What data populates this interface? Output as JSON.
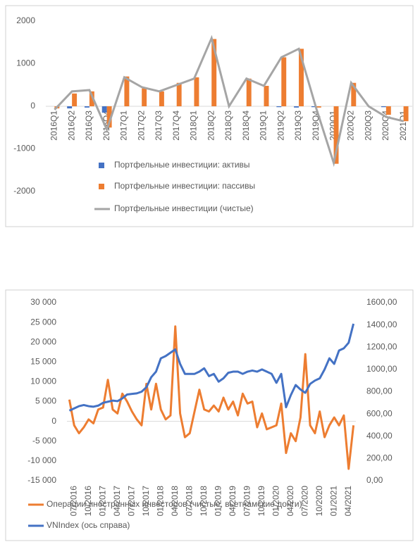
{
  "chart_data": [
    {
      "type": "bar",
      "categories": [
        "2016Q1",
        "2016Q2",
        "2016Q3",
        "2016Q4",
        "2017Q1",
        "2017Q2",
        "2017Q3",
        "2017Q4",
        "2018Q1",
        "2018Q2",
        "2018Q3",
        "2018Q4",
        "2019Q1",
        "2019Q2",
        "2019Q3",
        "2019Q4",
        "2020Q1",
        "2020Q2",
        "2020Q3",
        "2020Q4",
        "2021Q1"
      ],
      "series": [
        {
          "name": "Портфельные инвестиции: активы",
          "color": "#4472c4",
          "values": [
            0,
            -50,
            -30,
            -150,
            0,
            0,
            0,
            0,
            0,
            0,
            0,
            0,
            0,
            -20,
            -30,
            -20,
            0,
            0,
            0,
            -20,
            0
          ]
        },
        {
          "name": "Портфельные инвестиции: пассивы",
          "color": "#ed7d31",
          "values": [
            -50,
            300,
            350,
            -500,
            700,
            420,
            350,
            550,
            680,
            1580,
            0,
            650,
            480,
            1150,
            1350,
            -30,
            -1350,
            550,
            0,
            -200,
            -350
          ]
        },
        {
          "name": "Портфельные инвестиции (чистые)",
          "color": "#a5a5a5",
          "type": "line",
          "values": [
            -80,
            350,
            380,
            -550,
            680,
            450,
            350,
            500,
            650,
            1600,
            0,
            650,
            480,
            1150,
            1350,
            -50,
            -1330,
            550,
            0,
            -250,
            -350
          ]
        }
      ],
      "ylim": [
        -2000,
        2000
      ],
      "yticks": [
        -2000,
        -1000,
        0,
        1000,
        2000
      ]
    },
    {
      "type": "line",
      "categories": [
        null,
        "07/2016",
        null,
        null,
        "10/2016",
        null,
        null,
        "01/2017",
        null,
        null,
        "04/2017",
        null,
        null,
        "07/2017",
        null,
        null,
        "10/2017",
        null,
        null,
        "01/2018",
        null,
        null,
        "04/2018",
        null,
        null,
        "07/2018",
        null,
        null,
        "10/2018",
        null,
        null,
        "01/2019",
        null,
        null,
        "04/2019",
        null,
        null,
        "07/2019",
        null,
        null,
        "10/2019",
        null,
        null,
        "01/2020",
        null,
        null,
        "04/2020",
        null,
        null,
        "07/2020",
        null,
        null,
        "10/2020",
        null,
        null,
        "01/2021",
        null,
        null,
        "04/2021",
        null
      ],
      "series": [
        {
          "name": "Операции иностранных инвесторов (чистые, вьетнамские донги)",
          "color": "#ed7d31",
          "values": [
            5500,
            -1000,
            -3000,
            -1500,
            500,
            -500,
            3000,
            3500,
            10500,
            3000,
            2000,
            7000,
            5000,
            2500,
            500,
            -1000,
            9500,
            3000,
            9500,
            3000,
            500,
            1500,
            24000,
            2000,
            -4000,
            -3000,
            2500,
            8000,
            3000,
            2500,
            4000,
            2500,
            6000,
            3000,
            5000,
            1500,
            7000,
            4500,
            5000,
            -1500,
            2000,
            -2000,
            -1500,
            -1000,
            4500,
            -8000,
            -3000,
            -5000,
            1000,
            17000,
            -1000,
            -3000,
            2500,
            -4000,
            -1000,
            1000,
            -1000,
            1500,
            -12000,
            -1000
          ]
        },
        {
          "name": "VNIndex (ось справа)",
          "color": "#4472c4",
          "axis": "y2",
          "values": [
            630,
            650,
            670,
            680,
            670,
            665,
            675,
            700,
            710,
            720,
            715,
            740,
            775,
            780,
            785,
            800,
            840,
            930,
            980,
            1100,
            1120,
            1150,
            1180,
            1050,
            960,
            960,
            960,
            980,
            1010,
            940,
            960,
            890,
            920,
            970,
            980,
            980,
            960,
            980,
            990,
            980,
            1000,
            980,
            960,
            880,
            960,
            660,
            770,
            860,
            820,
            790,
            870,
            900,
            920,
            1000,
            1100,
            1050,
            1170,
            1190,
            1240,
            1410
          ]
        }
      ],
      "ylim": [
        -15000,
        30000
      ],
      "yticks": [
        {
          "value": -15000,
          "label": "-15 000"
        },
        {
          "value": -10000,
          "label": "-10 000"
        },
        {
          "value": -5000,
          "label": "-5 000"
        },
        0,
        {
          "value": 5000,
          "label": "5 000"
        },
        {
          "value": 10000,
          "label": "10 000"
        },
        {
          "value": 15000,
          "label": "15 000"
        },
        {
          "value": 20000,
          "label": "20 000"
        },
        {
          "value": 25000,
          "label": "25 000"
        },
        {
          "value": 30000,
          "label": "30 000"
        }
      ],
      "y2lim": [
        0,
        1600
      ],
      "y2ticks": [
        {
          "value": 0,
          "label": "0,00"
        },
        {
          "value": 200,
          "label": "200,00"
        },
        {
          "value": 400,
          "label": "400,00"
        },
        {
          "value": 600,
          "label": "600,00"
        },
        {
          "value": 800,
          "label": "800,00"
        },
        {
          "value": 1000,
          "label": "1000,00"
        },
        {
          "value": 1200,
          "label": "1200,00"
        },
        {
          "value": 1400,
          "label": "1400,00"
        },
        {
          "value": 1600,
          "label": "1600,00"
        }
      ]
    }
  ]
}
